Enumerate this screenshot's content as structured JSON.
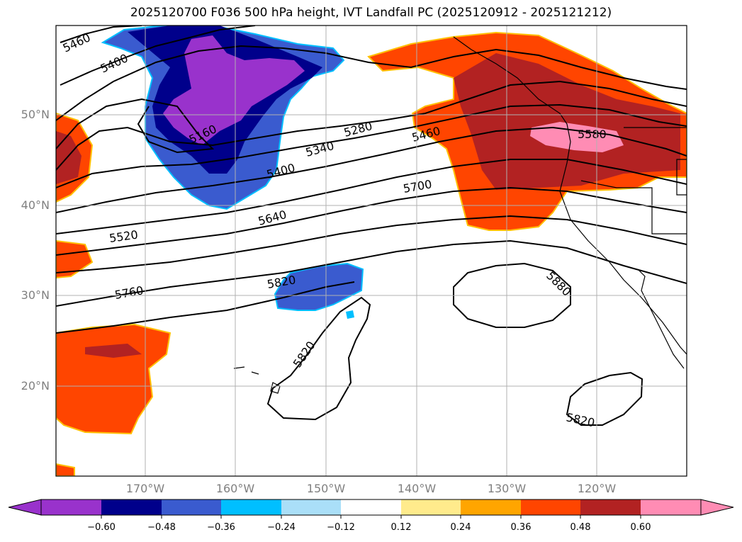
{
  "title": "2025120700 F036 500 hPa height, IVT Landfall PC (2025120912 - 2025121212)",
  "lat_ticks": [
    "50°N",
    "40°N",
    "30°N",
    "20°N"
  ],
  "lon_ticks": [
    "170°W",
    "160°W",
    "150°W",
    "140°W",
    "130°W",
    "120°W"
  ],
  "colorbar": {
    "colors": [
      "#9932cc",
      "#00008b",
      "#3a5bcf",
      "#00bfff",
      "#aadff8",
      "#ffffff",
      "#ffeb8c",
      "#ffa500",
      "#ff4500",
      "#b22222",
      "#ff8cb4"
    ],
    "ticks": [
      "−0.60",
      "−0.48",
      "−0.36",
      "−0.24",
      "−0.12",
      "0.12",
      "0.24",
      "0.36",
      "0.48",
      "0.60"
    ]
  },
  "contour_labels": [
    "5460",
    "5400",
    "5160",
    "5280",
    "5340",
    "5400",
    "5460",
    "5580",
    "5700",
    "5640",
    "5520",
    "5760",
    "5820",
    "5880",
    "5820",
    "5820"
  ]
}
